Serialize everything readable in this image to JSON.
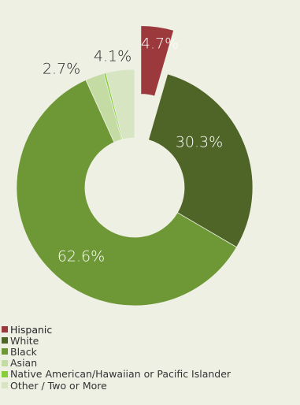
{
  "chart_data": {
    "type": "pie",
    "variant": "donut",
    "exploded_slice": "Hispanic",
    "slices": [
      {
        "label": "Hispanic",
        "value": 4.7,
        "value_label": "4.7%",
        "color": "#9b393c"
      },
      {
        "label": "White",
        "value": 30.3,
        "value_label": "30.3%",
        "color": "#4e6527"
      },
      {
        "label": "Black",
        "value": 62.6,
        "value_label": "62.6%",
        "color": "#6e9736"
      },
      {
        "label": "Asian",
        "value": 2.7,
        "value_label": "2.7%",
        "color": "#c4dba3"
      },
      {
        "label": "Native American/Hawaiian or Pacific Islander",
        "value": 0.3,
        "value_label": "",
        "color": "#86cf3a"
      },
      {
        "label": "Other / Two or More",
        "value": 4.1,
        "value_label": "4.1%",
        "color": "#d7e5c2"
      }
    ],
    "legend_position": "bottom-left"
  }
}
